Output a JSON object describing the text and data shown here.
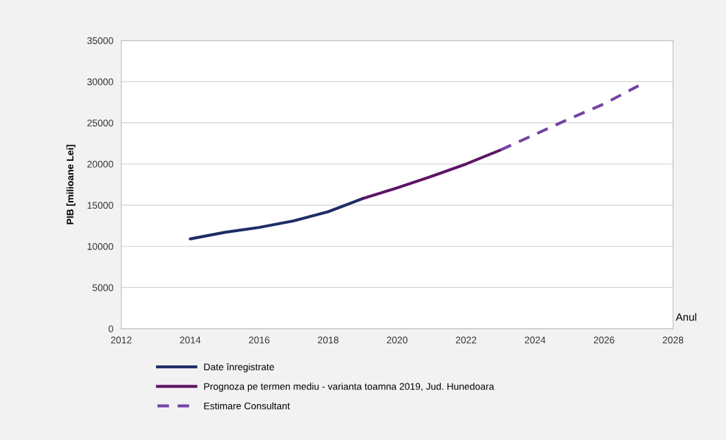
{
  "chart_data": {
    "type": "line",
    "xlabel": "Anul",
    "ylabel": "PIB [milioane Lei]",
    "xlim": [
      2012,
      2028
    ],
    "xticks": [
      2012,
      2014,
      2016,
      2018,
      2020,
      2022,
      2024,
      2026,
      2028
    ],
    "ylim": [
      0,
      35000
    ],
    "yticks": [
      0,
      5000,
      10000,
      15000,
      20000,
      25000,
      30000,
      35000
    ],
    "grid": "y",
    "legend": "bottom",
    "marker": "none",
    "series": [
      {
        "name": "Date înregistrate",
        "color": "#1f2d66",
        "line_style": "solid",
        "x": [
          2014,
          2015,
          2016,
          2017,
          2018,
          2019
        ],
        "values": [
          10900,
          11700,
          12300,
          13100,
          14200,
          15800
        ]
      },
      {
        "name": "Prognoza pe termen mediu - varianta toamna 2019, Jud. Hunedoara",
        "color": "#5e1566",
        "line_style": "solid",
        "x": [
          2019,
          2020,
          2021,
          2022,
          2023
        ],
        "values": [
          15800,
          17100,
          18500,
          20000,
          21700
        ]
      },
      {
        "name": "Estimare Consultant",
        "color": "#7444a8",
        "line_style": "dashed",
        "x": [
          2023,
          2024,
          2025,
          2026,
          2027
        ],
        "values": [
          21700,
          23600,
          25500,
          27300,
          29500
        ]
      }
    ]
  }
}
